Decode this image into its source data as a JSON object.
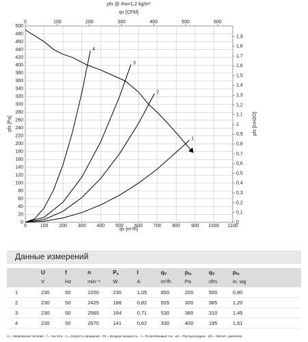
{
  "chart_data": {
    "type": "line",
    "title": "pfs @ rho=1,2 kg/m³",
    "x_label": "qv [m³/h]",
    "x2_label": "qv [CFM]",
    "y_label": "pfs [Pa]",
    "y2_label": "pfs [inH2O]",
    "xlim": [
      0,
      1100
    ],
    "xticks": [
      0,
      100,
      200,
      300,
      400,
      500,
      600,
      700,
      800,
      900,
      1000,
      1100
    ],
    "x2lim": [
      0,
      647
    ],
    "x2ticks": [
      0,
      100,
      200,
      300,
      400,
      500,
      600
    ],
    "ylim": [
      0,
      500
    ],
    "yticks": [
      0,
      20,
      40,
      60,
      80,
      100,
      120,
      140,
      160,
      180,
      200,
      220,
      240,
      260,
      280,
      300,
      320,
      340,
      360,
      380,
      400,
      420,
      440,
      460,
      480,
      500
    ],
    "y2lim": [
      0,
      2.008
    ],
    "y2ticks": [
      0,
      {
        "value": 0.1,
        "label": "0,1"
      },
      {
        "value": 0.2,
        "label": "0,2"
      },
      {
        "value": 0.3,
        "label": "0,3"
      },
      {
        "value": 0.4,
        "label": "0,4"
      },
      {
        "value": 0.5,
        "label": "0,5"
      },
      {
        "value": 0.6,
        "label": "0,6"
      },
      {
        "value": 0.7,
        "label": "0,7"
      },
      {
        "value": 0.8,
        "label": "0,8"
      },
      {
        "value": 0.9,
        "label": "0,9"
      },
      1,
      {
        "value": 1.1,
        "label": "1,1"
      },
      {
        "value": 1.2,
        "label": "1,2"
      },
      {
        "value": 1.3,
        "label": "1,3"
      },
      {
        "value": 1.4,
        "label": "1,4"
      },
      {
        "value": 1.5,
        "label": "1,5"
      },
      {
        "value": 1.6,
        "label": "1,6"
      },
      {
        "value": 1.7,
        "label": "1,7"
      },
      {
        "value": 1.8,
        "label": "1,8"
      },
      {
        "value": 1.9,
        "label": "1,9"
      }
    ],
    "grid": true,
    "series": [
      {
        "color": "#000000",
        "arrow": true,
        "x": [
          0,
          50,
          100,
          150,
          200,
          250,
          330,
          400,
          460,
          530,
          600,
          655,
          700,
          750,
          800,
          850,
          890
        ],
        "values": [
          490,
          475,
          460,
          440,
          428,
          420,
          400,
          388,
          375,
          360,
          332,
          300,
          280,
          255,
          228,
          200,
          178
        ]
      },
      {
        "name": "4",
        "color": "#000000",
        "x": [
          0,
          50,
          100,
          150,
          200,
          250,
          300,
          345
        ],
        "values": [
          0,
          9.2,
          36.7,
          82.6,
          146.9,
          229.6,
          330.6,
          437.2
        ]
      },
      {
        "name": "3",
        "color": "#000000",
        "x": [
          0,
          100,
          200,
          300,
          400,
          500,
          560
        ],
        "values": [
          0,
          12.8,
          51.3,
          115.3,
          205.1,
          320.4,
          401.9
        ]
      },
      {
        "name": "2",
        "color": "#000000",
        "x": [
          0,
          100,
          200,
          300,
          400,
          500,
          600,
          685
        ],
        "values": [
          0,
          7,
          28,
          62.9,
          111.8,
          174.8,
          251.6,
          328
        ]
      },
      {
        "name": "1",
        "color": "#000000",
        "x": [
          0,
          100,
          200,
          300,
          400,
          500,
          600,
          700,
          850,
          870
        ],
        "values": [
          0,
          2.8,
          11.1,
          24.9,
          44.3,
          69.2,
          99.6,
          135.6,
          200,
          209.5
        ]
      }
    ]
  },
  "table": {
    "title": "Данные измерений",
    "columns": [
      {
        "text": "U"
      },
      {
        "text": "f"
      },
      {
        "text": "n"
      },
      {
        "text": "P",
        "sub": "e"
      },
      {
        "text": "I"
      },
      {
        "text": "q",
        "sub": "V"
      },
      {
        "text": "p",
        "sub": "fs"
      },
      {
        "text": "q",
        "sub": "V"
      },
      {
        "text": "p",
        "sub": "fs"
      }
    ],
    "units": [
      "V",
      "Hz",
      "min⁻¹",
      "W",
      "A",
      "m³/h",
      "Pa",
      "cfm",
      "in. wg"
    ],
    "rows": [
      [
        "1",
        "230",
        "50",
        "2200",
        "230",
        "1,05",
        "850",
        "200",
        "500",
        "0,80"
      ],
      [
        "2",
        "230",
        "50",
        "2425",
        "188",
        "0,82",
        "655",
        "300",
        "385",
        "1,20"
      ],
      [
        "3",
        "230",
        "50",
        "2565",
        "164",
        "0,71",
        "530",
        "360",
        "310",
        "1,45"
      ],
      [
        "4",
        "230",
        "50",
        "2670",
        "141",
        "0,62",
        "330",
        "400",
        "195",
        "1,61"
      ]
    ],
    "footnote": "U = Напряжение питания · f = Частота · n = Скорость вращения · Pe = Входная мощность · I = Потребляемый ток · qV = Расход воздуха · pfs = Увелич. давления"
  }
}
